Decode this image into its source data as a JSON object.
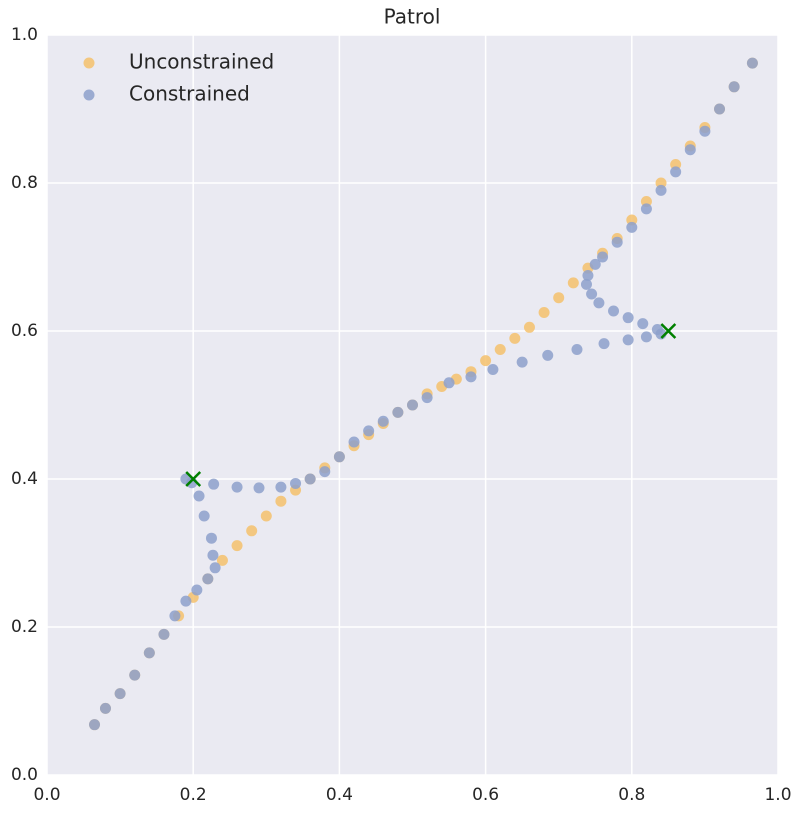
{
  "chart_data": {
    "type": "scatter",
    "title": "Patrol",
    "xlim": [
      0,
      1
    ],
    "ylim": [
      0,
      1
    ],
    "xticks": [
      {
        "value": 0,
        "label": "0.0"
      },
      0.2,
      0.4,
      0.6,
      0.8,
      {
        "value": 1,
        "label": "1.0"
      }
    ],
    "yticks": [
      {
        "value": 0,
        "label": "0.0"
      },
      0.2,
      0.4,
      0.6,
      0.8,
      {
        "value": 1,
        "label": "1.0"
      }
    ],
    "grid": true,
    "legend": "upper left",
    "series": [
      {
        "name": "Unconstrained",
        "color": "#f5c16c",
        "x": [
          0.065,
          0.08,
          0.1,
          0.12,
          0.14,
          0.16,
          0.18,
          0.2,
          0.22,
          0.24,
          0.26,
          0.28,
          0.3,
          0.32,
          0.34,
          0.36,
          0.38,
          0.4,
          0.42,
          0.44,
          0.46,
          0.48,
          0.5,
          0.52,
          0.54,
          0.56,
          0.58,
          0.6,
          0.62,
          0.64,
          0.66,
          0.68,
          0.7,
          0.72,
          0.74,
          0.76,
          0.78,
          0.8,
          0.82,
          0.84,
          0.86,
          0.88,
          0.9,
          0.92,
          0.94,
          0.965
        ],
        "y": [
          0.068,
          0.09,
          0.11,
          0.135,
          0.165,
          0.19,
          0.215,
          0.24,
          0.265,
          0.29,
          0.31,
          0.33,
          0.35,
          0.37,
          0.385,
          0.4,
          0.415,
          0.43,
          0.445,
          0.46,
          0.475,
          0.49,
          0.5,
          0.515,
          0.525,
          0.535,
          0.545,
          0.56,
          0.575,
          0.59,
          0.605,
          0.625,
          0.645,
          0.665,
          0.685,
          0.705,
          0.725,
          0.75,
          0.775,
          0.8,
          0.825,
          0.85,
          0.875,
          0.9,
          0.93,
          0.962
        ]
      },
      {
        "name": "Constrained",
        "color": "#8da0cb",
        "x": [
          0.065,
          0.08,
          0.1,
          0.12,
          0.14,
          0.16,
          0.175,
          0.19,
          0.205,
          0.22,
          0.23,
          0.227,
          0.225,
          0.215,
          0.208,
          0.198,
          0.19,
          0.228,
          0.26,
          0.29,
          0.32,
          0.34,
          0.36,
          0.38,
          0.4,
          0.42,
          0.44,
          0.46,
          0.48,
          0.5,
          0.52,
          0.55,
          0.58,
          0.61,
          0.65,
          0.685,
          0.725,
          0.762,
          0.795,
          0.82,
          0.84,
          0.835,
          0.815,
          0.795,
          0.775,
          0.755,
          0.745,
          0.738,
          0.74,
          0.75,
          0.76,
          0.78,
          0.8,
          0.82,
          0.84,
          0.86,
          0.88,
          0.9,
          0.92,
          0.94,
          0.965
        ],
        "y": [
          0.068,
          0.09,
          0.11,
          0.135,
          0.165,
          0.19,
          0.215,
          0.235,
          0.25,
          0.265,
          0.28,
          0.297,
          0.32,
          0.35,
          0.377,
          0.395,
          0.4,
          0.393,
          0.389,
          0.388,
          0.389,
          0.394,
          0.4,
          0.41,
          0.43,
          0.45,
          0.465,
          0.478,
          0.49,
          0.5,
          0.51,
          0.53,
          0.538,
          0.548,
          0.558,
          0.567,
          0.575,
          0.583,
          0.588,
          0.592,
          0.596,
          0.602,
          0.61,
          0.618,
          0.627,
          0.638,
          0.65,
          0.663,
          0.675,
          0.69,
          0.7,
          0.72,
          0.74,
          0.765,
          0.79,
          0.815,
          0.845,
          0.87,
          0.9,
          0.93,
          0.962
        ]
      }
    ],
    "markers": {
      "color": "#008000",
      "x": [
        0.2,
        0.85
      ],
      "y": [
        0.4,
        0.6
      ]
    }
  }
}
